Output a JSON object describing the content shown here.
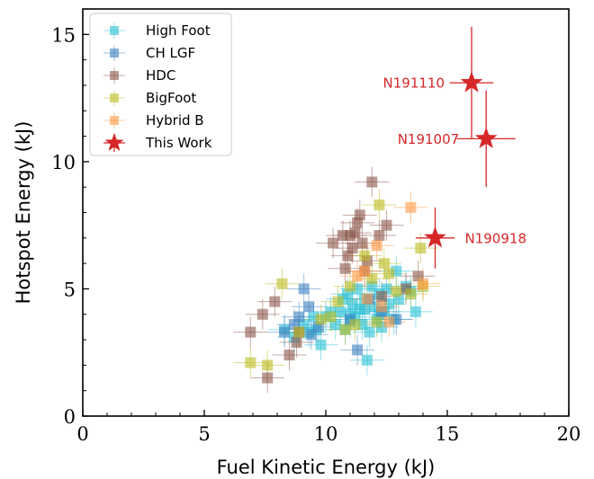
{
  "chart_data": {
    "type": "scatter",
    "xlabel": "Fuel Kinetic Energy (kJ)",
    "ylabel": "Hotspot Energy (kJ)",
    "xlim": [
      0,
      20
    ],
    "ylim": [
      0,
      16
    ],
    "xticks": [
      0,
      5,
      10,
      15,
      20
    ],
    "yticks": [
      0,
      5,
      10,
      15
    ],
    "grid": false,
    "legend_position": "top-left",
    "series": [
      {
        "name": "High Foot",
        "color": "#2cc2d6",
        "marker": "square",
        "points": [
          [
            8.3,
            3.4
          ],
          [
            8.7,
            3.1
          ],
          [
            9.1,
            3.6
          ],
          [
            9.3,
            3.3
          ],
          [
            9.5,
            3.9
          ],
          [
            9.6,
            3.4
          ],
          [
            9.8,
            2.8
          ],
          [
            10.0,
            3.9
          ],
          [
            10.2,
            4.1
          ],
          [
            10.4,
            3.6
          ],
          [
            10.6,
            4.1
          ],
          [
            10.8,
            3.4
          ],
          [
            10.9,
            4.8
          ],
          [
            11.0,
            3.7
          ],
          [
            11.1,
            4.4
          ],
          [
            11.2,
            3.9
          ],
          [
            11.3,
            5.0
          ],
          [
            11.4,
            4.2
          ],
          [
            11.5,
            3.6
          ],
          [
            11.6,
            4.6
          ],
          [
            11.7,
            2.2
          ],
          [
            11.8,
            3.3
          ],
          [
            11.9,
            5.1
          ],
          [
            12.0,
            4.3
          ],
          [
            12.1,
            3.8
          ],
          [
            12.2,
            4.8
          ],
          [
            12.3,
            3.5
          ],
          [
            12.4,
            4.1
          ],
          [
            12.5,
            5.0
          ],
          [
            12.6,
            4.4
          ],
          [
            12.8,
            3.8
          ],
          [
            12.9,
            5.7
          ],
          [
            13.0,
            4.6
          ],
          [
            13.3,
            5.1
          ],
          [
            13.5,
            4.9
          ],
          [
            13.7,
            4.1
          ],
          [
            11.0,
            4.0
          ],
          [
            11.6,
            4.2
          ],
          [
            12.2,
            4.0
          ],
          [
            10.7,
            4.6
          ]
        ]
      },
      {
        "name": "CH LGF",
        "color": "#3e80bf",
        "marker": "square",
        "points": [
          [
            8.3,
            3.3
          ],
          [
            8.7,
            3.6
          ],
          [
            8.9,
            3.9
          ],
          [
            9.1,
            5.0
          ],
          [
            9.3,
            4.3
          ],
          [
            9.4,
            3.2
          ],
          [
            9.7,
            3.5
          ],
          [
            11.3,
            2.6
          ],
          [
            11.0,
            3.8
          ],
          [
            11.8,
            4.6
          ],
          [
            12.9,
            3.8
          ],
          [
            12.3,
            4.1
          ]
        ]
      },
      {
        "name": "HDC",
        "color": "#8c564b",
        "marker": "square",
        "points": [
          [
            6.9,
            3.3
          ],
          [
            7.4,
            4.0
          ],
          [
            7.6,
            1.5
          ],
          [
            7.9,
            4.5
          ],
          [
            8.5,
            2.4
          ],
          [
            8.8,
            2.9
          ],
          [
            8.9,
            3.3
          ],
          [
            10.3,
            6.8
          ],
          [
            10.7,
            7.1
          ],
          [
            10.8,
            5.8
          ],
          [
            10.9,
            6.3
          ],
          [
            11.0,
            7.1
          ],
          [
            11.1,
            6.6
          ],
          [
            11.2,
            7.2
          ],
          [
            11.3,
            7.6
          ],
          [
            11.4,
            7.9
          ],
          [
            11.5,
            6.8
          ],
          [
            11.6,
            5.7
          ],
          [
            11.7,
            6.1
          ],
          [
            11.9,
            9.2
          ],
          [
            12.2,
            7.1
          ],
          [
            12.3,
            4.7
          ],
          [
            12.5,
            7.5
          ],
          [
            13.3,
            5.0
          ],
          [
            13.8,
            5.5
          ]
        ]
      },
      {
        "name": "BigFoot",
        "color": "#bcbd22",
        "marker": "square",
        "points": [
          [
            6.9,
            2.1
          ],
          [
            7.6,
            2.0
          ],
          [
            8.2,
            5.2
          ],
          [
            8.9,
            3.3
          ],
          [
            9.8,
            3.8
          ],
          [
            10.5,
            4.5
          ],
          [
            10.8,
            3.4
          ],
          [
            11.2,
            3.6
          ],
          [
            11.6,
            6.3
          ],
          [
            11.9,
            5.4
          ],
          [
            12.2,
            8.3
          ],
          [
            12.4,
            6.0
          ],
          [
            12.6,
            5.6
          ],
          [
            12.9,
            4.9
          ],
          [
            13.5,
            4.8
          ],
          [
            13.9,
            6.6
          ],
          [
            14.0,
            5.1
          ],
          [
            11.0,
            5.1
          ],
          [
            12.1,
            3.7
          ],
          [
            10.2,
            3.9
          ]
        ]
      },
      {
        "name": "Hybrid B",
        "color": "#ff9944",
        "marker": "square",
        "points": [
          [
            11.3,
            5.5
          ],
          [
            11.6,
            5.7
          ],
          [
            11.7,
            4.6
          ],
          [
            12.1,
            6.7
          ],
          [
            12.3,
            4.3
          ],
          [
            12.6,
            3.7
          ],
          [
            13.5,
            8.2
          ],
          [
            14.0,
            5.2
          ]
        ]
      },
      {
        "name": "This Work",
        "color": "#d62728",
        "marker": "star",
        "points": [
          {
            "x": 16.0,
            "y": 13.1,
            "xerr": 0.9,
            "yerr": 2.2,
            "label": "N191110"
          },
          {
            "x": 16.6,
            "y": 10.9,
            "xerr": 1.2,
            "yerr": 1.9,
            "label": "N191007"
          },
          {
            "x": 14.5,
            "y": 7.0,
            "xerr": 0.8,
            "yerr": 1.2,
            "label": "N190918"
          }
        ]
      }
    ]
  }
}
